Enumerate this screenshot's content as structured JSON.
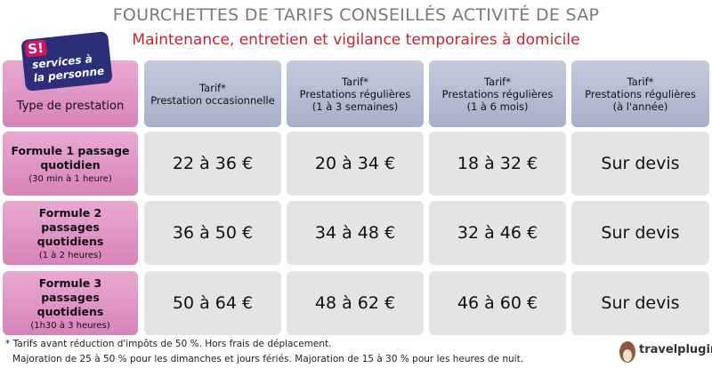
{
  "header": {
    "title": "FOURCHETTES DE TARIFS CONSEILLÉS ACTIVITÉ DE SAP",
    "subtitle": "Maintenance, entretien et vigilance temporaires à domicile"
  },
  "logo": {
    "mark": "S!",
    "lines": [
      "services à",
      "la personne"
    ]
  },
  "table": {
    "columns": [
      {
        "label": "Type de prestation"
      },
      {
        "tag": "Tarif*",
        "lines": [
          "Prestation occasionnelle"
        ]
      },
      {
        "tag": "Tarif*",
        "lines": [
          "Prestations régulières",
          "(1 à 3 semaines)"
        ]
      },
      {
        "tag": "Tarif*",
        "lines": [
          "Prestations régulières",
          "(1 à 6 mois)"
        ]
      },
      {
        "tag": "Tarif*",
        "lines": [
          "Prestations régulières",
          "(à l'année)"
        ]
      }
    ],
    "rows": [
      {
        "name": "Formule 1 passage quotidien",
        "detail": "(30 min à 1 heure)",
        "cells": [
          "22 à 36 €",
          "20 à 34 €",
          "18 à 32 €",
          "Sur devis"
        ]
      },
      {
        "name": "Formule 2 passages quotidiens",
        "detail": "(1 à 2 heures)",
        "cells": [
          "36 à 50 €",
          "34 à 48 €",
          "32 à 46 €",
          "Sur devis"
        ]
      },
      {
        "name": "Formule 3 passages quotidiens",
        "detail": "(1h30 à 3 heures)",
        "cells": [
          "50 à 64 €",
          "48 à 62 €",
          "46 à 60 €",
          "Sur devis"
        ]
      }
    ]
  },
  "footnotes": [
    "* Tarifs avant réduction d'impôts de 50 %. Hors frais de déplacement.",
    "Majoration de 25 à 50 % pour les dimanches et jours fériés. Majoration de 15 à 30 % pour les heures de nuit."
  ],
  "brand": "travelplugin"
}
